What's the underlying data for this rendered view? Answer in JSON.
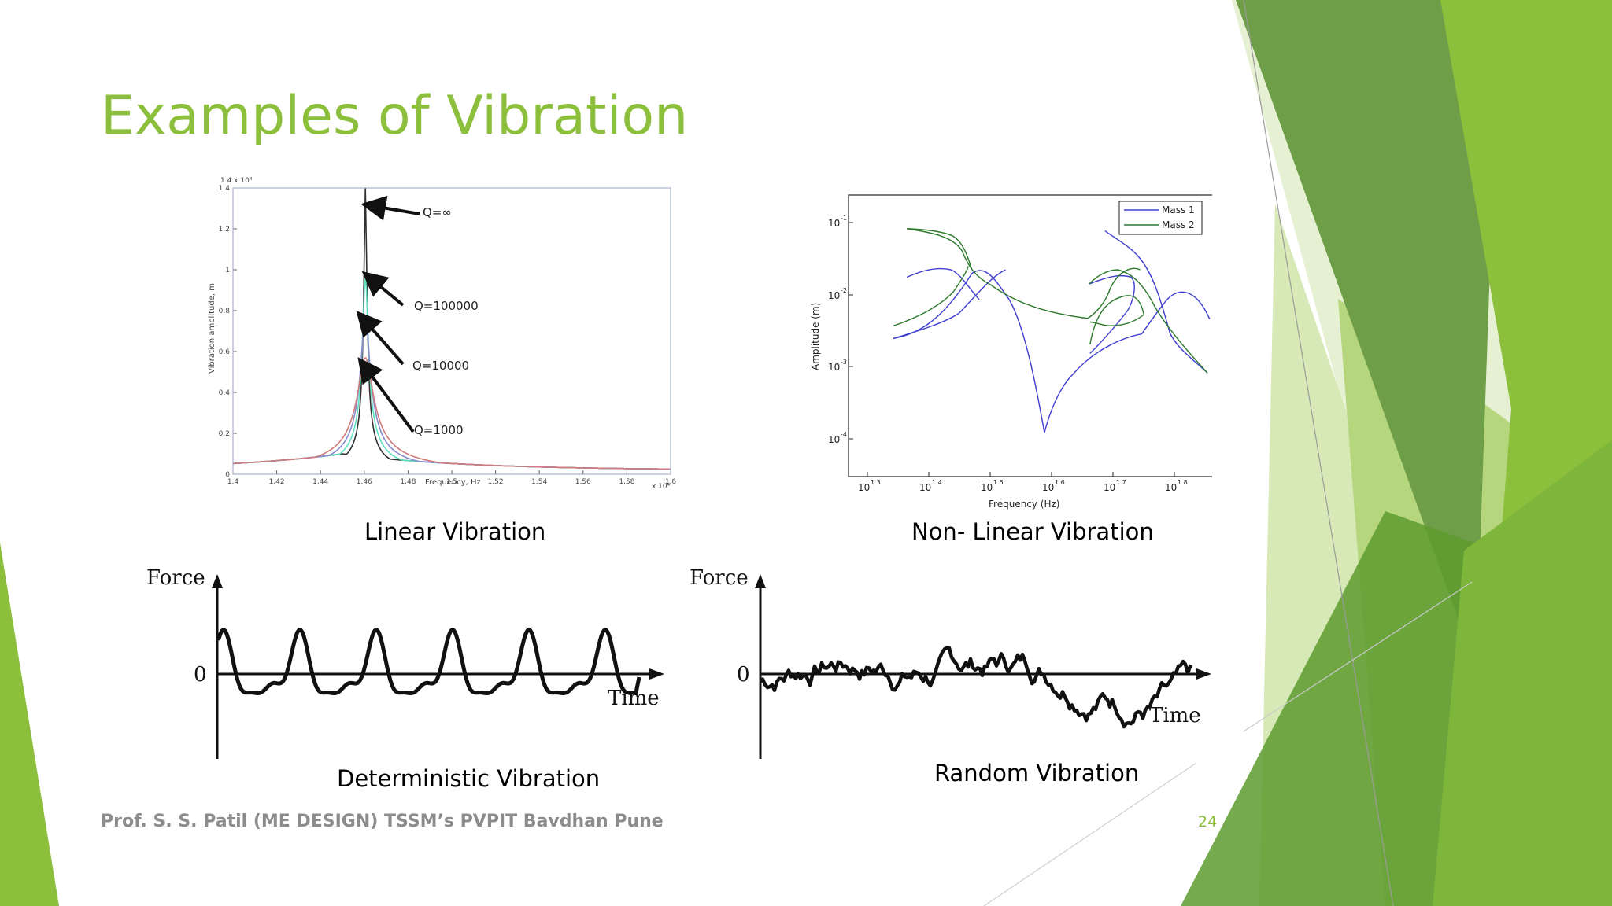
{
  "slide": {
    "title": "Examples of Vibration",
    "footer": "Prof. S. S. Patil (ME DESIGN) TSSM’s PVPIT Bavdhan Pune",
    "page_number": "24",
    "colors": {
      "accent": "#8cbf3b",
      "dark_green": "#5e9b2f",
      "light_green": "#d6e9b6"
    }
  },
  "figures": {
    "linear": {
      "caption": "Linear Vibration",
      "scale_label": "1.4 x 10⁴",
      "x_multiplier": "x 10⁴",
      "ylabel": "Vibration amplitude, m",
      "xlabel": "Frequency, Hz",
      "annotations": [
        "Q=∞",
        "Q=100000",
        "Q=10000",
        "Q=1000"
      ]
    },
    "nonlinear": {
      "caption": "Non- Linear Vibration",
      "ylabel": "Amplitude (m)",
      "xlabel": "Frequency (Hz)",
      "legend": [
        "Mass 1",
        "Mass 2"
      ]
    },
    "deterministic": {
      "caption": "Deterministic Vibration",
      "force_label": "Force",
      "zero_label": "0",
      "time_label": "Time"
    },
    "random": {
      "caption": "Random Vibration",
      "force_label": "Force",
      "zero_label": "0",
      "time_label": "Time"
    }
  },
  "chart_data": [
    {
      "type": "line",
      "title": "",
      "xlabel": "Frequency, Hz",
      "ylabel": "Vibration amplitude, m",
      "xlim": [
        1.4,
        1.6
      ],
      "ylim": [
        0,
        1.4
      ],
      "x_ticks": [
        "1.4",
        "1.42",
        "1.44",
        "1.46",
        "1.48",
        "1.5",
        "1.52",
        "1.54",
        "1.56",
        "1.58",
        "1.6"
      ],
      "y_ticks": [
        "0",
        "0.2",
        "0.4",
        "0.6",
        "0.8",
        "1",
        "1.2",
        "1.4"
      ],
      "series": [
        {
          "name": "Q=∞",
          "peak": 1.4
        },
        {
          "name": "Q=100000",
          "peak": 0.97
        },
        {
          "name": "Q=10000",
          "peak": 0.77
        },
        {
          "name": "Q=1000",
          "peak": 0.57
        }
      ],
      "grid": false
    },
    {
      "type": "line",
      "title": "",
      "xlabel": "Frequency (Hz)",
      "ylabel": "Amplitude (m)",
      "log_y": true,
      "x_ticks": [
        "10^1.3",
        "10^1.4",
        "10^1.5",
        "10^1.6",
        "10^1.7",
        "10^1.8"
      ],
      "y_ticks": [
        "10^-1",
        "10^-2",
        "10^-3",
        "10^-4"
      ],
      "series": [
        {
          "name": "Mass 1"
        },
        {
          "name": "Mass 2"
        }
      ],
      "legend_position": "top-right",
      "grid": false
    }
  ]
}
